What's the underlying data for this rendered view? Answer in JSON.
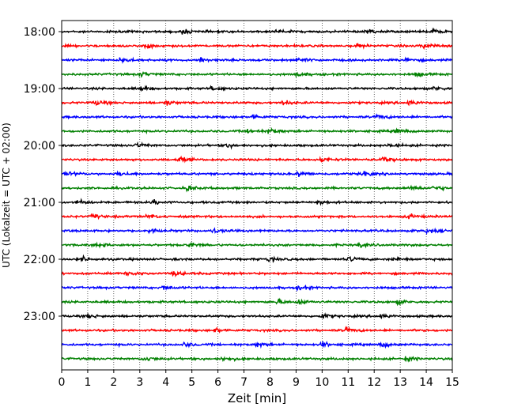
{
  "chart_data": {
    "type": "line",
    "title": "",
    "xlabel": "Zeit  [min]",
    "ylabel": "UTC (Lokalzeit = UTC + 02:00)",
    "xlim": [
      0,
      15
    ],
    "x_ticks": [
      "0",
      "1",
      "2",
      "3",
      "4",
      "5",
      "6",
      "7",
      "8",
      "9",
      "10",
      "11",
      "12",
      "13",
      "14",
      "15"
    ],
    "y_ticks": [
      "18:00",
      "19:00",
      "20:00",
      "21:00",
      "22:00",
      "23:00"
    ],
    "grid": "vertical dotted lines at each minute",
    "trace_interval_minutes": 15,
    "trace_colors": [
      "#000000",
      "#ff0000",
      "#0000ff",
      "#008000"
    ],
    "series": [
      {
        "start": "18:00",
        "color": "#000000",
        "events_min": [
          4.6,
          8.3,
          11.7,
          14.2
        ]
      },
      {
        "start": "18:15",
        "color": "#ff0000",
        "events_min": [
          3.2,
          11.2,
          13.9
        ]
      },
      {
        "start": "18:30",
        "color": "#0000ff",
        "events_min": [
          2.3,
          5.3,
          9.1,
          13.2
        ]
      },
      {
        "start": "18:45",
        "color": "#008000",
        "events_min": [
          3.0,
          9.0,
          13.6
        ]
      },
      {
        "start": "19:00",
        "color": "#000000",
        "events_min": [
          3.0,
          5.8,
          14.3
        ]
      },
      {
        "start": "19:15",
        "color": "#ff0000",
        "events_min": [
          1.3,
          4.0,
          8.5,
          13.3
        ]
      },
      {
        "start": "19:30",
        "color": "#0000ff",
        "events_min": [
          7.3,
          12.1
        ]
      },
      {
        "start": "19:45",
        "color": "#008000",
        "events_min": [
          7.2,
          8.0,
          12.8
        ]
      },
      {
        "start": "20:00",
        "color": "#000000",
        "events_min": [
          2.9,
          6.3,
          12.6
        ]
      },
      {
        "start": "20:15",
        "color": "#ff0000",
        "events_min": [
          4.5,
          10.0,
          12.3
        ]
      },
      {
        "start": "20:30",
        "color": "#0000ff",
        "events_min": [
          0.2,
          2.2,
          9.1,
          11.6
        ]
      },
      {
        "start": "20:45",
        "color": "#008000",
        "events_min": [
          4.8,
          13.4,
          14.3
        ]
      },
      {
        "start": "21:00",
        "color": "#000000",
        "events_min": [
          0.6,
          3.5,
          9.8
        ]
      },
      {
        "start": "21:15",
        "color": "#ff0000",
        "events_min": [
          1.2,
          3.3,
          13.3
        ]
      },
      {
        "start": "21:30",
        "color": "#0000ff",
        "events_min": [
          3.4,
          5.8,
          14.0
        ]
      },
      {
        "start": "21:45",
        "color": "#008000",
        "events_min": [
          1.3,
          4.9,
          11.4
        ]
      },
      {
        "start": "22:00",
        "color": "#000000",
        "events_min": [
          0.8,
          7.9,
          11.0,
          12.8
        ]
      },
      {
        "start": "22:15",
        "color": "#ff0000",
        "events_min": [
          2.5,
          4.3
        ]
      },
      {
        "start": "22:30",
        "color": "#0000ff",
        "events_min": [
          3.9,
          9.1
        ]
      },
      {
        "start": "22:45",
        "color": "#008000",
        "events_min": [
          8.3,
          9.1,
          12.9
        ]
      },
      {
        "start": "23:00",
        "color": "#000000",
        "events_min": [
          1.0,
          10.0,
          12.2
        ]
      },
      {
        "start": "23:15",
        "color": "#ff0000",
        "events_min": [
          5.9,
          10.9
        ]
      },
      {
        "start": "23:30",
        "color": "#0000ff",
        "events_min": [
          4.7,
          7.5,
          10.0,
          12.3
        ]
      },
      {
        "start": "23:45",
        "color": "#008000",
        "events_min": [
          3.2,
          6.2,
          13.2
        ]
      }
    ]
  }
}
